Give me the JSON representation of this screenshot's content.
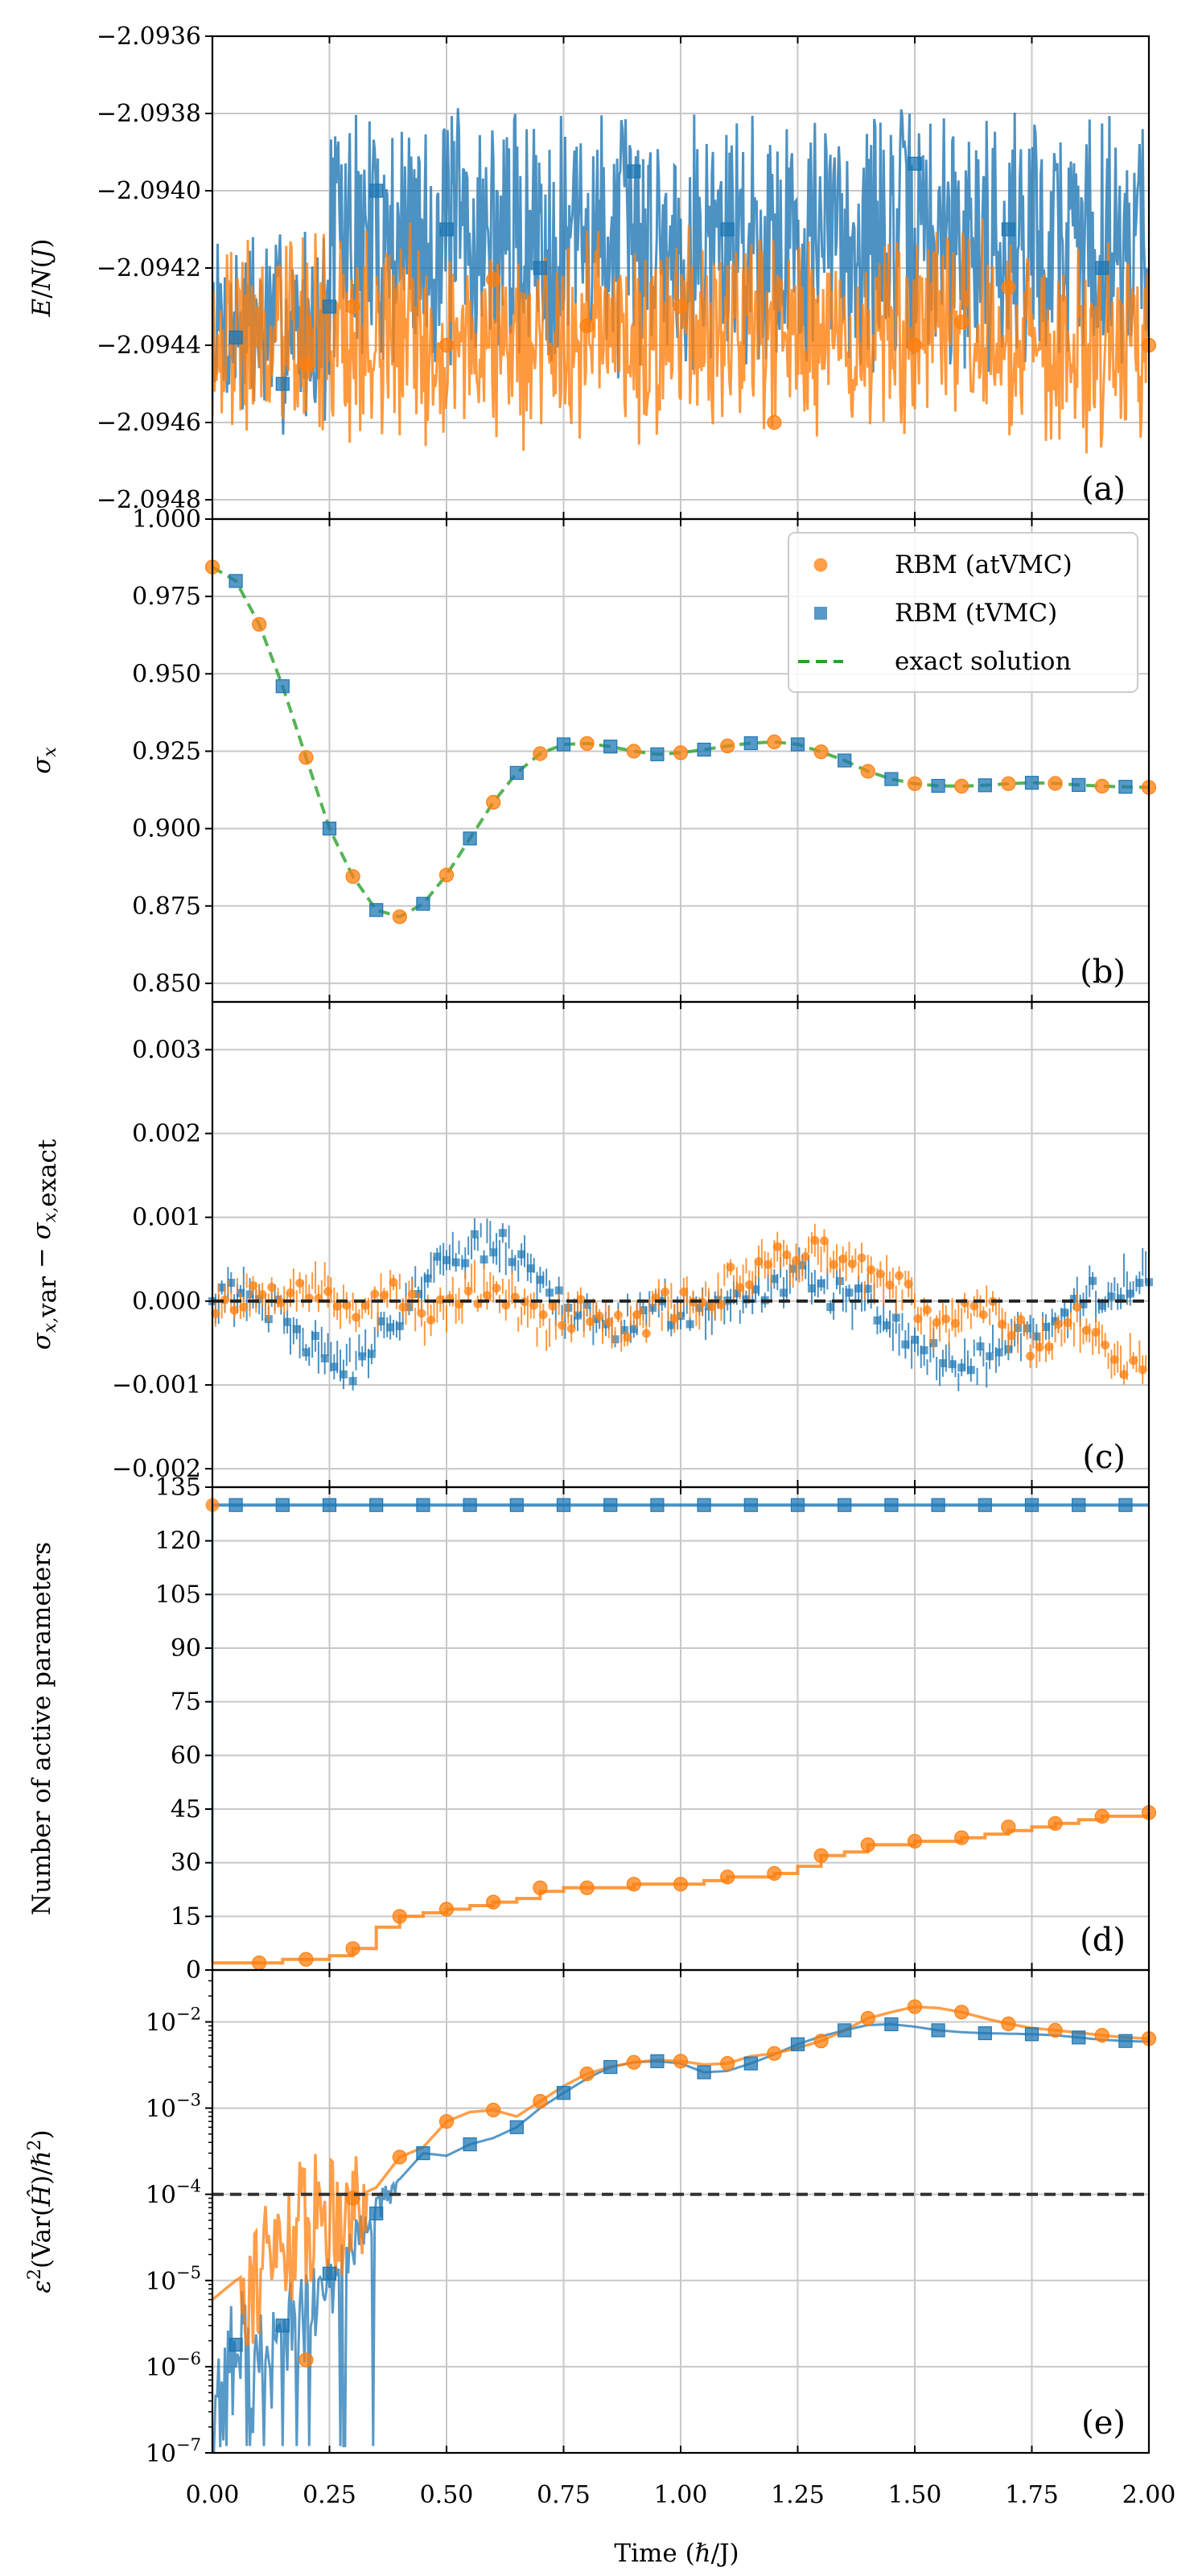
{
  "colors": {
    "orange": "#ff7f0e",
    "blue": "#1f77b4",
    "green": "#2ca02c",
    "black": "#000000",
    "grid": "#c8c8c8"
  },
  "x_axis": {
    "label": "Time (ℏ/J)",
    "range": [
      0,
      2
    ],
    "ticks": [
      0,
      0.25,
      0.5,
      0.75,
      1.0,
      1.25,
      1.5,
      1.75,
      2.0
    ],
    "tick_labels": [
      "0.00",
      "0.25",
      "0.50",
      "0.75",
      "1.00",
      "1.25",
      "1.50",
      "1.75",
      "2.00"
    ]
  },
  "chart_data": [
    {
      "panel": "(a)",
      "type": "line",
      "ylabel": "E/N(J)",
      "ylim": [
        -2.09485,
        -2.0936
      ],
      "yticks": [
        -2.0936,
        -2.0938,
        -2.094,
        -2.0942,
        -2.0944,
        -2.0946,
        -2.0948
      ],
      "ytick_labels": [
        "−2.0936",
        "−2.0938",
        "−2.0940",
        "−2.0942",
        "−2.0944",
        "−2.0946",
        "−2.0948"
      ],
      "grid": true,
      "series": [
        {
          "key": "atvmc",
          "markers_x": [
            0.2,
            0.3,
            0.5,
            0.6,
            0.8,
            1.0,
            1.2,
            1.5,
            1.6,
            1.7,
            2.0
          ],
          "markers_y": [
            -2.09445,
            -2.0943,
            -2.0944,
            -2.09423,
            -2.09435,
            -2.0943,
            -2.0946,
            -2.0944,
            -2.09434,
            -2.09425,
            -2.0944
          ]
        },
        {
          "key": "tvmc",
          "markers_x": [
            0.05,
            0.15,
            0.25,
            0.35,
            0.5,
            0.7,
            0.9,
            1.1,
            1.5,
            1.7,
            1.9
          ],
          "markers_y": [
            -2.09438,
            -2.0945,
            -2.0943,
            -2.094,
            -2.0941,
            -2.0942,
            -2.09395,
            -2.0941,
            -2.09393,
            -2.0941,
            -2.0942
          ]
        }
      ]
    },
    {
      "panel": "(b)",
      "type": "line",
      "ylabel": "σ_x",
      "ylim": [
        0.844,
        1.0
      ],
      "yticks": [
        1.0,
        0.975,
        0.95,
        0.925,
        0.9,
        0.875,
        0.85
      ],
      "ytick_labels": [
        "1.000",
        "0.975",
        "0.950",
        "0.925",
        "0.900",
        "0.875",
        "0.850"
      ],
      "grid": true,
      "legend": {
        "placement": "top-right",
        "entries": [
          {
            "key": "atvmc",
            "label": "RBM (atVMC)",
            "marker": "circle"
          },
          {
            "key": "tvmc",
            "label": "RBM (tVMC)",
            "marker": "square"
          },
          {
            "key": "exact",
            "label": "exact solution",
            "marker": "dashed-line"
          }
        ]
      },
      "exact_x": [
        0,
        0.05,
        0.1,
        0.15,
        0.2,
        0.25,
        0.3,
        0.35,
        0.4,
        0.45,
        0.5,
        0.55,
        0.6,
        0.65,
        0.7,
        0.75,
        0.8,
        0.85,
        0.9,
        0.95,
        1.0,
        1.05,
        1.1,
        1.15,
        1.2,
        1.25,
        1.3,
        1.35,
        1.4,
        1.45,
        1.5,
        1.55,
        1.6,
        1.65,
        1.7,
        1.75,
        1.8,
        1.85,
        1.9,
        1.95,
        2.0
      ],
      "exact_y": [
        0.9845,
        0.98,
        0.966,
        0.946,
        0.923,
        0.9,
        0.8845,
        0.8737,
        0.8715,
        0.8757,
        0.885,
        0.8968,
        0.9085,
        0.918,
        0.9242,
        0.9272,
        0.9275,
        0.9265,
        0.925,
        0.924,
        0.9245,
        0.9255,
        0.9267,
        0.9276,
        0.928,
        0.9272,
        0.9248,
        0.922,
        0.9185,
        0.916,
        0.9145,
        0.9138,
        0.9137,
        0.914,
        0.9145,
        0.9148,
        0.9146,
        0.9141,
        0.9137,
        0.9135,
        0.9133
      ],
      "atvmc_x": [
        0,
        0.1,
        0.2,
        0.3,
        0.4,
        0.5,
        0.6,
        0.7,
        0.8,
        0.9,
        1.0,
        1.1,
        1.2,
        1.3,
        1.4,
        1.5,
        1.6,
        1.7,
        1.8,
        1.9,
        2.0
      ],
      "atvmc_y": [
        0.9845,
        0.966,
        0.923,
        0.8845,
        0.8715,
        0.885,
        0.9085,
        0.9242,
        0.9275,
        0.925,
        0.9245,
        0.9267,
        0.928,
        0.9248,
        0.9185,
        0.9145,
        0.9137,
        0.9145,
        0.9146,
        0.9137,
        0.9133
      ],
      "tvmc_x": [
        0.05,
        0.15,
        0.25,
        0.35,
        0.45,
        0.55,
        0.65,
        0.75,
        0.85,
        0.95,
        1.05,
        1.15,
        1.25,
        1.35,
        1.45,
        1.55,
        1.65,
        1.75,
        1.85,
        1.95
      ],
      "tvmc_y": [
        0.98,
        0.946,
        0.9,
        0.8737,
        0.8757,
        0.8968,
        0.918,
        0.9272,
        0.9265,
        0.924,
        0.9255,
        0.9276,
        0.9272,
        0.922,
        0.916,
        0.9138,
        0.914,
        0.9148,
        0.9141,
        0.9135
      ]
    },
    {
      "panel": "(c)",
      "type": "scatter",
      "ylabel": "σ_{x,var} − σ_{x,exact}",
      "ylim": [
        -0.00222,
        0.00357
      ],
      "yticks": [
        0.003,
        0.002,
        0.001,
        0.0,
        -0.001,
        -0.002
      ],
      "ytick_labels": [
        "0.003",
        "0.002",
        "0.001",
        "0.000",
        "−0.001",
        "−0.002"
      ],
      "grid": true,
      "reference_line_y": 0.0,
      "tvmc_trend_x": [
        0,
        0.1,
        0.15,
        0.2,
        0.25,
        0.3,
        0.35,
        0.4,
        0.45,
        0.5,
        0.55,
        0.6,
        0.65,
        0.7,
        0.75,
        0.8,
        0.85,
        0.9,
        0.95,
        1.0,
        1.05,
        1.1,
        1.15,
        1.2,
        1.25,
        1.3,
        1.35,
        1.4,
        1.45,
        1.5,
        1.55,
        1.6,
        1.65,
        1.7,
        1.75,
        1.8,
        1.85,
        1.9,
        1.95,
        2.0
      ],
      "tvmc_trend_y": [
        0.0001,
        0.0,
        -0.0002,
        -0.0005,
        -0.0006,
        -0.0008,
        -0.0005,
        -0.0001,
        0.0003,
        0.0006,
        0.0006,
        0.0007,
        0.0005,
        0.0002,
        -0.0001,
        -0.0002,
        -0.0003,
        -0.0002,
        -0.0001,
        -0.0001,
        -0.0002,
        -0.0001,
        0.0,
        0.0002,
        0.0003,
        0.0002,
        0.0,
        0.0,
        -0.0003,
        -0.0005,
        -0.0007,
        -0.0008,
        -0.0007,
        -0.0005,
        -0.0004,
        -0.0002,
        0.0,
        0.0001,
        0.0002,
        0.0003
      ],
      "atvmc_trend_x": [
        0,
        0.1,
        0.2,
        0.25,
        0.3,
        0.35,
        0.4,
        0.45,
        0.5,
        0.55,
        0.6,
        0.65,
        0.7,
        0.75,
        0.8,
        0.85,
        0.9,
        0.95,
        1.0,
        1.05,
        1.1,
        1.15,
        1.2,
        1.25,
        1.3,
        1.35,
        1.4,
        1.45,
        1.5,
        1.55,
        1.6,
        1.65,
        1.7,
        1.75,
        1.8,
        1.85,
        1.9,
        1.95,
        2.0
      ],
      "atvmc_trend_y": [
        0.0,
        0.0001,
        0.0002,
        0.0001,
        -0.0001,
        0.0,
        0.0001,
        -0.0002,
        -0.0001,
        0.0001,
        0.0002,
        -0.0001,
        -0.0003,
        -0.0002,
        -0.0001,
        -0.0004,
        -0.0003,
        -0.0001,
        0.0,
        0.0,
        0.0002,
        0.0004,
        0.0005,
        0.0005,
        0.0006,
        0.0004,
        0.0003,
        0.0002,
        0.0,
        -0.0003,
        -0.0002,
        0.0,
        -0.0003,
        -0.0005,
        -0.0004,
        -0.0002,
        -0.0006,
        -0.0007,
        -0.0006
      ]
    },
    {
      "panel": "(d)",
      "type": "line",
      "ylabel": "Number of active parameters",
      "ylim": [
        0,
        135
      ],
      "yticks": [
        0,
        15,
        30,
        45,
        60,
        75,
        90,
        105,
        120,
        135
      ],
      "ytick_labels": [
        "0",
        "15",
        "30",
        "45",
        "60",
        "75",
        "90",
        "105",
        "120",
        "135"
      ],
      "grid": true,
      "tvmc_x": [
        0,
        0.05,
        0.15,
        0.25,
        0.35,
        0.45,
        0.55,
        0.65,
        0.75,
        0.85,
        0.95,
        1.05,
        1.15,
        1.25,
        1.35,
        1.45,
        1.55,
        1.65,
        1.75,
        1.85,
        1.95,
        2.0
      ],
      "tvmc_y": [
        130,
        130,
        130,
        130,
        130,
        130,
        130,
        130,
        130,
        130,
        130,
        130,
        130,
        130,
        130,
        130,
        130,
        130,
        130,
        130,
        130,
        130
      ],
      "tvmc_marker_x": [
        0.05,
        0.15,
        0.25,
        0.35,
        0.45,
        0.55,
        0.65,
        0.75,
        0.85,
        0.95,
        1.05,
        1.15,
        1.25,
        1.35,
        1.45,
        1.55,
        1.65,
        1.75,
        1.85,
        1.95
      ],
      "atvmc_line_x": [
        0,
        0.05,
        0.1,
        0.15,
        0.2,
        0.25,
        0.3,
        0.35,
        0.4,
        0.45,
        0.5,
        0.55,
        0.6,
        0.65,
        0.7,
        0.75,
        0.8,
        0.85,
        0.9,
        0.95,
        1.0,
        1.05,
        1.1,
        1.15,
        1.2,
        1.25,
        1.3,
        1.35,
        1.4,
        1.45,
        1.5,
        1.55,
        1.6,
        1.65,
        1.7,
        1.75,
        1.8,
        1.85,
        1.9,
        1.95,
        2.0
      ],
      "atvmc_line_y": [
        2,
        2,
        2,
        3,
        3,
        4,
        6,
        12,
        15,
        16,
        17,
        18,
        19,
        20,
        22,
        23,
        23,
        23,
        24,
        24,
        24,
        25,
        26,
        26,
        27,
        29,
        32,
        33,
        35,
        35,
        36,
        36,
        37,
        38,
        39,
        40,
        41,
        42,
        43,
        43,
        44
      ],
      "atvmc_x": [
        0.1,
        0.2,
        0.3,
        0.4,
        0.5,
        0.6,
        0.7,
        0.8,
        0.9,
        1.0,
        1.1,
        1.2,
        1.3,
        1.4,
        1.5,
        1.6,
        1.7,
        1.8,
        1.9,
        2.0
      ],
      "atvmc_y": [
        2,
        3,
        6,
        15,
        17,
        19,
        23,
        23,
        24,
        24,
        26,
        27,
        32,
        35,
        36,
        37,
        40,
        41,
        43,
        44
      ]
    },
    {
      "panel": "(e)",
      "type": "line",
      "ylabel": "ε²(Var(Ĥ)/ℏ²)",
      "yscale": "log",
      "ylim": [
        1e-07,
        0.04
      ],
      "yticks": [
        1e-07,
        1e-06,
        1e-05,
        0.0001,
        0.001,
        0.01
      ],
      "ytick_labels": [
        [
          "10",
          "−7"
        ],
        [
          "10",
          "−6"
        ],
        [
          "10",
          "−5"
        ],
        [
          "10",
          "−4"
        ],
        [
          "10",
          "−3"
        ],
        [
          "10",
          "−2"
        ]
      ],
      "grid": true,
      "reference_line_y": 0.0001,
      "atvmc_x": [
        0,
        0.05,
        0.1,
        0.15,
        0.2,
        0.25,
        0.3,
        0.35,
        0.4,
        0.45,
        0.5,
        0.55,
        0.6,
        0.65,
        0.7,
        0.75,
        0.8,
        0.85,
        0.9,
        0.95,
        1.0,
        1.05,
        1.1,
        1.15,
        1.2,
        1.25,
        1.3,
        1.35,
        1.4,
        1.45,
        1.5,
        1.55,
        1.6,
        1.65,
        1.7,
        1.75,
        1.8,
        1.85,
        1.9,
        1.95,
        2.0
      ],
      "atvmc_y": [
        6e-06,
        1e-05,
        1.5e-05,
        3e-05,
        6e-05,
        8e-05,
        9e-05,
        0.00012,
        0.00027,
        0.00035,
        0.0007,
        0.0009,
        0.00095,
        0.0008,
        0.0012,
        0.0018,
        0.0025,
        0.003,
        0.0034,
        0.0036,
        0.0035,
        0.0032,
        0.0033,
        0.004,
        0.0043,
        0.005,
        0.006,
        0.008,
        0.011,
        0.013,
        0.015,
        0.0145,
        0.013,
        0.011,
        0.0095,
        0.0085,
        0.008,
        0.0075,
        0.007,
        0.0066,
        0.0064
      ],
      "atvmc_marker_x": [
        0.2,
        0.3,
        0.4,
        0.5,
        0.6,
        0.7,
        0.8,
        0.9,
        1.0,
        1.1,
        1.2,
        1.3,
        1.4,
        1.5,
        1.6,
        1.7,
        1.8,
        1.9,
        2.0
      ],
      "atvmc_marker_y": [
        1.2e-06,
        9e-05,
        0.00027,
        0.0007,
        0.00095,
        0.0012,
        0.0025,
        0.0034,
        0.0035,
        0.0033,
        0.0043,
        0.006,
        0.011,
        0.015,
        0.013,
        0.0095,
        0.008,
        0.007,
        0.0064
      ],
      "tvmc_x": [
        0,
        0.05,
        0.1,
        0.15,
        0.2,
        0.25,
        0.3,
        0.35,
        0.4,
        0.45,
        0.5,
        0.55,
        0.6,
        0.65,
        0.7,
        0.75,
        0.8,
        0.85,
        0.9,
        0.95,
        1.0,
        1.05,
        1.1,
        1.15,
        1.2,
        1.25,
        1.3,
        1.35,
        1.4,
        1.45,
        1.5,
        1.55,
        1.6,
        1.65,
        1.7,
        1.75,
        1.8,
        1.85,
        1.9,
        1.95,
        2.0
      ],
      "tvmc_y": [
        3e-07,
        1.5e-06,
        6e-07,
        2e-06,
        3e-06,
        8e-06,
        2e-05,
        6e-05,
        0.00015,
        0.0003,
        0.00028,
        0.00038,
        0.00045,
        0.0006,
        0.001,
        0.0015,
        0.0022,
        0.003,
        0.0034,
        0.0035,
        0.0033,
        0.0026,
        0.0027,
        0.0033,
        0.0042,
        0.0055,
        0.0068,
        0.008,
        0.0092,
        0.0094,
        0.0088,
        0.008,
        0.0076,
        0.0074,
        0.0073,
        0.0072,
        0.007,
        0.0066,
        0.0062,
        0.006,
        0.0059
      ],
      "tvmc_marker_x": [
        0.05,
        0.15,
        0.25,
        0.35,
        0.45,
        0.55,
        0.65,
        0.75,
        0.85,
        0.95,
        1.05,
        1.15,
        1.25,
        1.35,
        1.45,
        1.55,
        1.65,
        1.75,
        1.85,
        1.95
      ],
      "tvmc_marker_y": [
        1.8e-06,
        3e-06,
        1.2e-05,
        6e-05,
        0.0003,
        0.00038,
        0.0006,
        0.0015,
        0.003,
        0.0035,
        0.0026,
        0.0033,
        0.0055,
        0.008,
        0.0094,
        0.008,
        0.0074,
        0.0072,
        0.0066,
        0.006
      ]
    }
  ],
  "panel_letters": [
    "(a)",
    "(b)",
    "(c)",
    "(d)",
    "(e)"
  ]
}
